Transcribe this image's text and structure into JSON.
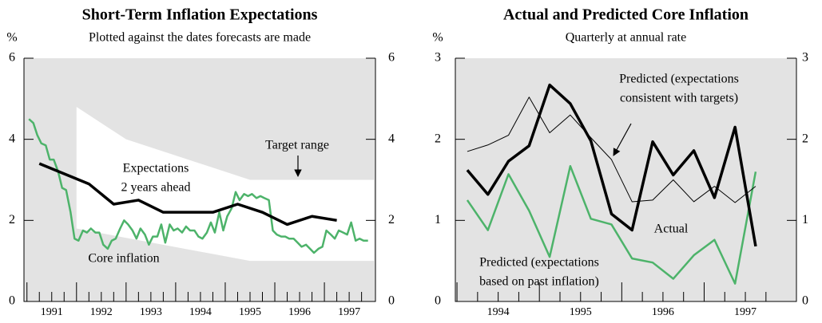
{
  "chart_data": [
    {
      "type": "line",
      "title": "Short-Term Inflation Expectations",
      "subtitle": "Plotted against the dates forecasts are made",
      "ylabel": "%",
      "xlim": [
        1990.94,
        1998.03
      ],
      "xticks": [
        1991,
        1992,
        1993,
        1994,
        1995,
        1996,
        1997
      ],
      "ylim": [
        0,
        6
      ],
      "yticks": [
        0,
        2,
        4,
        6
      ],
      "band": {
        "color": "#ffffff",
        "x": [
          1992,
          1993,
          1995.5,
          1998
        ],
        "upper": [
          4.8,
          4.0,
          3.0,
          3.0
        ],
        "lower": [
          1.8,
          1.57,
          1.0,
          1.0
        ]
      },
      "annotations": [
        {
          "text": "Target range"
        }
      ],
      "series": [
        {
          "label": [
            "Core inflation"
          ],
          "color": "#4db36a",
          "width": 2.5,
          "x": [
            1991.04,
            1991.13,
            1991.21,
            1991.29,
            1991.38,
            1991.46,
            1991.54,
            1991.63,
            1991.71,
            1991.79,
            1991.88,
            1991.96,
            1992.04,
            1992.13,
            1992.21,
            1992.29,
            1992.38,
            1992.46,
            1992.54,
            1992.63,
            1992.71,
            1992.79,
            1992.88,
            1992.96,
            1993.04,
            1993.13,
            1993.21,
            1993.29,
            1993.38,
            1993.46,
            1993.54,
            1993.63,
            1993.71,
            1993.79,
            1993.88,
            1993.96,
            1994.04,
            1994.13,
            1994.21,
            1994.29,
            1994.38,
            1994.46,
            1994.54,
            1994.63,
            1994.71,
            1994.79,
            1994.88,
            1994.96,
            1995.04,
            1995.13,
            1995.21,
            1995.29,
            1995.38,
            1995.46,
            1995.54,
            1995.63,
            1995.71,
            1995.79,
            1995.88,
            1995.96,
            1996.04,
            1996.13,
            1996.21,
            1996.29,
            1996.38,
            1996.46,
            1996.54,
            1996.63,
            1996.71,
            1996.79,
            1996.88,
            1996.96,
            1997.04,
            1997.13,
            1997.21,
            1997.29,
            1997.38,
            1997.46,
            1997.54,
            1997.63,
            1997.71,
            1997.79,
            1997.88
          ],
          "values": [
            4.5,
            4.4,
            4.1,
            3.9,
            3.85,
            3.5,
            3.5,
            3.2,
            2.8,
            2.75,
            2.2,
            1.55,
            1.5,
            1.75,
            1.7,
            1.8,
            1.7,
            1.7,
            1.4,
            1.3,
            1.5,
            1.55,
            1.8,
            2.0,
            1.9,
            1.75,
            1.55,
            1.8,
            1.65,
            1.4,
            1.6,
            1.6,
            1.9,
            1.45,
            1.9,
            1.75,
            1.8,
            1.7,
            1.85,
            1.75,
            1.75,
            1.6,
            1.55,
            1.7,
            1.95,
            1.7,
            2.2,
            1.75,
            2.1,
            2.3,
            2.7,
            2.5,
            2.65,
            2.6,
            2.65,
            2.55,
            2.6,
            2.55,
            2.5,
            1.75,
            1.65,
            1.6,
            1.6,
            1.55,
            1.55,
            1.45,
            1.35,
            1.4,
            1.3,
            1.2,
            1.3,
            1.35,
            1.75,
            1.65,
            1.55,
            1.75,
            1.7,
            1.65,
            1.95,
            1.5,
            1.55,
            1.5,
            1.5
          ]
        },
        {
          "label": [
            "Expectations",
            "2 years ahead"
          ],
          "color": "#000000",
          "width": 3.5,
          "x": [
            1991.25,
            1991.75,
            1992.25,
            1992.75,
            1993.25,
            1993.75,
            1994.25,
            1994.75,
            1995.25,
            1995.75,
            1996.25,
            1996.75,
            1997.25
          ],
          "values": [
            3.4,
            3.15,
            2.9,
            2.4,
            2.5,
            2.2,
            2.2,
            2.2,
            2.4,
            2.2,
            1.9,
            2.1,
            2.0
          ]
        }
      ]
    },
    {
      "type": "line",
      "title": "Actual and Predicted Core Inflation",
      "subtitle": "Quarterly at annual rate",
      "ylabel": "%",
      "xlim": [
        1993.98,
        1998.12
      ],
      "xticks": [
        1994,
        1995,
        1996,
        1997
      ],
      "ylim": [
        0,
        3
      ],
      "yticks": [
        0,
        1,
        2,
        3
      ],
      "series": [
        {
          "label": [
            "Predicted (expectations",
            "based on past inflation)"
          ],
          "color": "#4db36a",
          "width": 2.5,
          "x": [
            1994.125,
            1994.375,
            1994.625,
            1994.875,
            1995.125,
            1995.375,
            1995.625,
            1995.875,
            1996.125,
            1996.375,
            1996.625,
            1996.875,
            1997.125,
            1997.375,
            1997.625
          ],
          "values": [
            1.25,
            0.88,
            1.57,
            1.12,
            0.55,
            1.67,
            1.02,
            0.95,
            0.53,
            0.48,
            0.28,
            0.57,
            0.76,
            0.22,
            1.6
          ]
        },
        {
          "label": [
            "Predicted (expectations",
            "consistent with targets)"
          ],
          "color": "#000000",
          "width": 1,
          "x": [
            1994.125,
            1994.375,
            1994.625,
            1994.875,
            1995.125,
            1995.375,
            1995.625,
            1995.875,
            1996.125,
            1996.375,
            1996.625,
            1996.875,
            1997.125,
            1997.375,
            1997.625
          ],
          "values": [
            1.85,
            1.93,
            2.05,
            2.52,
            2.08,
            2.3,
            2.02,
            1.75,
            1.23,
            1.25,
            1.5,
            1.23,
            1.42,
            1.22,
            1.42
          ]
        },
        {
          "label": [
            "Actual"
          ],
          "color": "#000000",
          "width": 3.5,
          "x": [
            1994.125,
            1994.375,
            1994.625,
            1994.875,
            1995.125,
            1995.375,
            1995.625,
            1995.875,
            1996.125,
            1996.375,
            1996.625,
            1996.875,
            1997.125,
            1997.375,
            1997.625
          ],
          "values": [
            1.62,
            1.32,
            1.73,
            1.92,
            2.67,
            2.44,
            1.98,
            1.08,
            0.88,
            1.97,
            1.56,
            1.86,
            1.28,
            2.15,
            0.68
          ]
        }
      ]
    }
  ]
}
